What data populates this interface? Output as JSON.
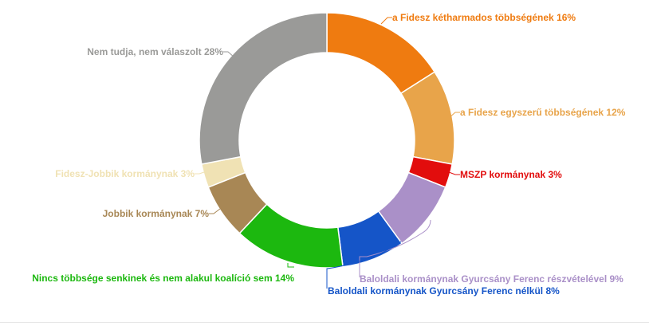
{
  "chart_data": {
    "type": "pie",
    "variant": "donut",
    "slices": [
      {
        "label": "a Fidesz kétharmados többségének 16%",
        "value": 16,
        "color": "#ef7b10"
      },
      {
        "label": "a Fidesz egyszerű többségének 12%",
        "value": 12,
        "color": "#e8a44a"
      },
      {
        "label": "MSZP kormánynak 3%",
        "value": 3,
        "color": "#e20d0d"
      },
      {
        "label": "Baloldali kormánynak Gyurcsány Ferenc részvételével 9%",
        "value": 9,
        "color": "#aa90c8"
      },
      {
        "label": "Baloldali kormánynak Gyurcsány Ferenc nélkül 8%",
        "value": 8,
        "color": "#1555c8"
      },
      {
        "label": "Nincs többsége senkinek és nem alakul koalíció sem 14%",
        "value": 14,
        "color": "#1cb80f"
      },
      {
        "label": "Jobbik kormánynak 7%",
        "value": 7,
        "color": "#a88755"
      },
      {
        "label": "Fidesz-Jobbik kormánynak 3%",
        "value": 3,
        "color": "#f0e2b4"
      },
      {
        "label": "Nem tudja, nem válaszolt 28%",
        "value": 28,
        "color": "#9a9a98"
      }
    ]
  }
}
